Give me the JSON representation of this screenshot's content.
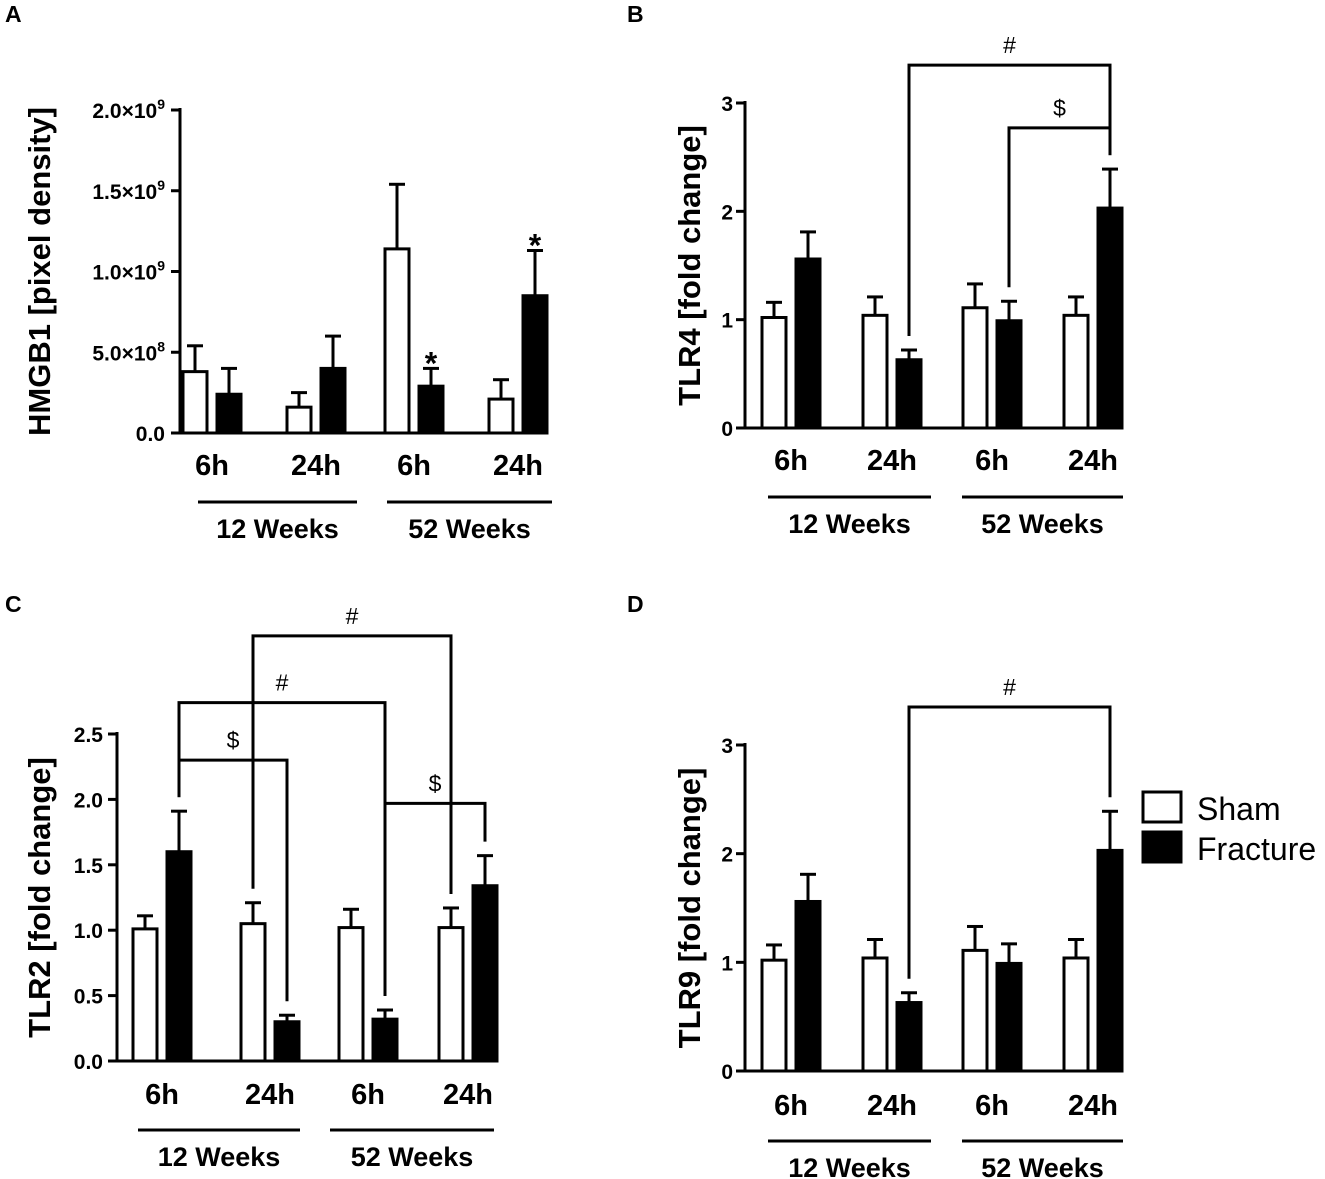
{
  "chart_data": [
    {
      "type": "bar",
      "panel": "A",
      "ylabel": "HMGB1 [pixel density]",
      "ylim": [
        0,
        2000000000
      ],
      "yticks": [
        {
          "value": 0,
          "label": "0.0"
        },
        {
          "value": 500000000,
          "label": "5.0×10",
          "exp": "8"
        },
        {
          "value": 1000000000,
          "label": "1.0×10",
          "exp": "9"
        },
        {
          "value": 1500000000,
          "label": "1.5×10",
          "exp": "9"
        },
        {
          "value": 2000000000,
          "label": "2.0×10",
          "exp": "9"
        }
      ],
      "categories": [
        "6h",
        "24h",
        "6h",
        "24h"
      ],
      "groups": [
        {
          "label": "12 Weeks",
          "span": [
            0,
            1
          ]
        },
        {
          "label": "52 Weeks",
          "span": [
            2,
            3
          ]
        }
      ],
      "series": [
        {
          "name": "Sham",
          "values": [
            380000000,
            160000000,
            1140000000,
            210000000
          ],
          "errors": [
            160000000,
            90000000,
            400000000,
            120000000
          ]
        },
        {
          "name": "Fracture",
          "values": [
            240000000,
            400000000,
            290000000,
            850000000
          ],
          "errors": [
            160000000,
            200000000,
            110000000,
            280000000
          ]
        }
      ],
      "annotations": [
        {
          "type": "star",
          "label": "*",
          "category": 2,
          "series": 1
        },
        {
          "type": "star",
          "label": "*",
          "category": 3,
          "series": 1
        }
      ]
    },
    {
      "type": "bar",
      "panel": "B",
      "ylabel": "TLR4 [fold change]",
      "ylim": [
        0,
        3
      ],
      "yticks": [
        {
          "value": 0,
          "label": "0"
        },
        {
          "value": 1,
          "label": "1"
        },
        {
          "value": 2,
          "label": "2"
        },
        {
          "value": 3,
          "label": "3"
        }
      ],
      "categories": [
        "6h",
        "24h",
        "6h",
        "24h"
      ],
      "groups": [
        {
          "label": "12 Weeks",
          "span": [
            0,
            1
          ]
        },
        {
          "label": "52 Weeks",
          "span": [
            2,
            3
          ]
        }
      ],
      "series": [
        {
          "name": "Sham",
          "values": [
            1.02,
            1.04,
            1.11,
            1.04
          ],
          "errors": [
            0.14,
            0.17,
            0.22,
            0.17
          ]
        },
        {
          "name": "Fracture",
          "values": [
            1.56,
            0.63,
            0.99,
            2.03
          ],
          "errors": [
            0.25,
            0.09,
            0.18,
            0.36
          ]
        }
      ],
      "annotations": [
        {
          "type": "bracket",
          "label": "#",
          "from": {
            "category": 1,
            "series": 1
          },
          "to": {
            "category": 3,
            "series": 1
          },
          "level": 3.35
        },
        {
          "type": "bracket",
          "label": "$",
          "from": {
            "category": 2,
            "series": 1
          },
          "to": {
            "category": 3,
            "series": 1
          },
          "level": 2.77
        }
      ]
    },
    {
      "type": "bar",
      "panel": "C",
      "ylabel": "TLR2 [fold change]",
      "ylim": [
        0,
        2.5
      ],
      "yticks": [
        {
          "value": 0,
          "label": "0.0"
        },
        {
          "value": 0.5,
          "label": "0.5"
        },
        {
          "value": 1,
          "label": "1.0"
        },
        {
          "value": 1.5,
          "label": "1.5"
        },
        {
          "value": 2,
          "label": "2.0"
        },
        {
          "value": 2.5,
          "label": "2.5"
        }
      ],
      "categories": [
        "6h",
        "24h",
        "6h",
        "24h"
      ],
      "groups": [
        {
          "label": "12 Weeks",
          "span": [
            0,
            1
          ]
        },
        {
          "label": "52 Weeks",
          "span": [
            2,
            3
          ]
        }
      ],
      "series": [
        {
          "name": "Sham",
          "values": [
            1.01,
            1.05,
            1.02,
            1.02
          ],
          "errors": [
            0.1,
            0.16,
            0.14,
            0.15
          ]
        },
        {
          "name": "Fracture",
          "values": [
            1.6,
            0.3,
            0.32,
            1.34
          ],
          "errors": [
            0.31,
            0.05,
            0.07,
            0.23
          ]
        }
      ],
      "annotations": [
        {
          "type": "bracket",
          "label": "#",
          "from": {
            "category": 1,
            "series": 0
          },
          "to": {
            "category": 3,
            "series": 0
          },
          "level": 3.25
        },
        {
          "type": "bracket",
          "label": "#",
          "from": {
            "category": 0,
            "series": 1
          },
          "to": {
            "category": 2,
            "series": 1
          },
          "level": 2.74
        },
        {
          "type": "bracket",
          "label": "$",
          "from": {
            "category": 0,
            "series": 1
          },
          "to": {
            "category": 1,
            "series": 1
          },
          "level": 2.3
        },
        {
          "type": "bracket",
          "label": "$",
          "from": {
            "category": 2,
            "series": 1
          },
          "to": {
            "category": 3,
            "series": 1
          },
          "level": 1.97
        }
      ]
    },
    {
      "type": "bar",
      "panel": "D",
      "ylabel": "TLR9 [fold change]",
      "ylim": [
        0,
        3
      ],
      "yticks": [
        {
          "value": 0,
          "label": "0"
        },
        {
          "value": 1,
          "label": "1"
        },
        {
          "value": 2,
          "label": "2"
        },
        {
          "value": 3,
          "label": "3"
        }
      ],
      "categories": [
        "6h",
        "24h",
        "6h",
        "24h"
      ],
      "groups": [
        {
          "label": "12 Weeks",
          "span": [
            0,
            1
          ]
        },
        {
          "label": "52 Weeks",
          "span": [
            2,
            3
          ]
        }
      ],
      "series": [
        {
          "name": "Sham",
          "values": [
            1.02,
            1.04,
            1.11,
            1.04
          ],
          "errors": [
            0.14,
            0.17,
            0.22,
            0.17
          ]
        },
        {
          "name": "Fracture",
          "values": [
            1.56,
            0.63,
            0.99,
            2.03
          ],
          "errors": [
            0.25,
            0.09,
            0.18,
            0.36
          ]
        }
      ],
      "annotations": [
        {
          "type": "bracket",
          "label": "#",
          "from": {
            "category": 1,
            "series": 1
          },
          "to": {
            "category": 3,
            "series": 1
          },
          "level": 3.35
        }
      ]
    }
  ],
  "legend": {
    "items": [
      {
        "name": "Sham",
        "color": "#ffffff"
      },
      {
        "name": "Fracture",
        "color": "#000000"
      }
    ]
  }
}
